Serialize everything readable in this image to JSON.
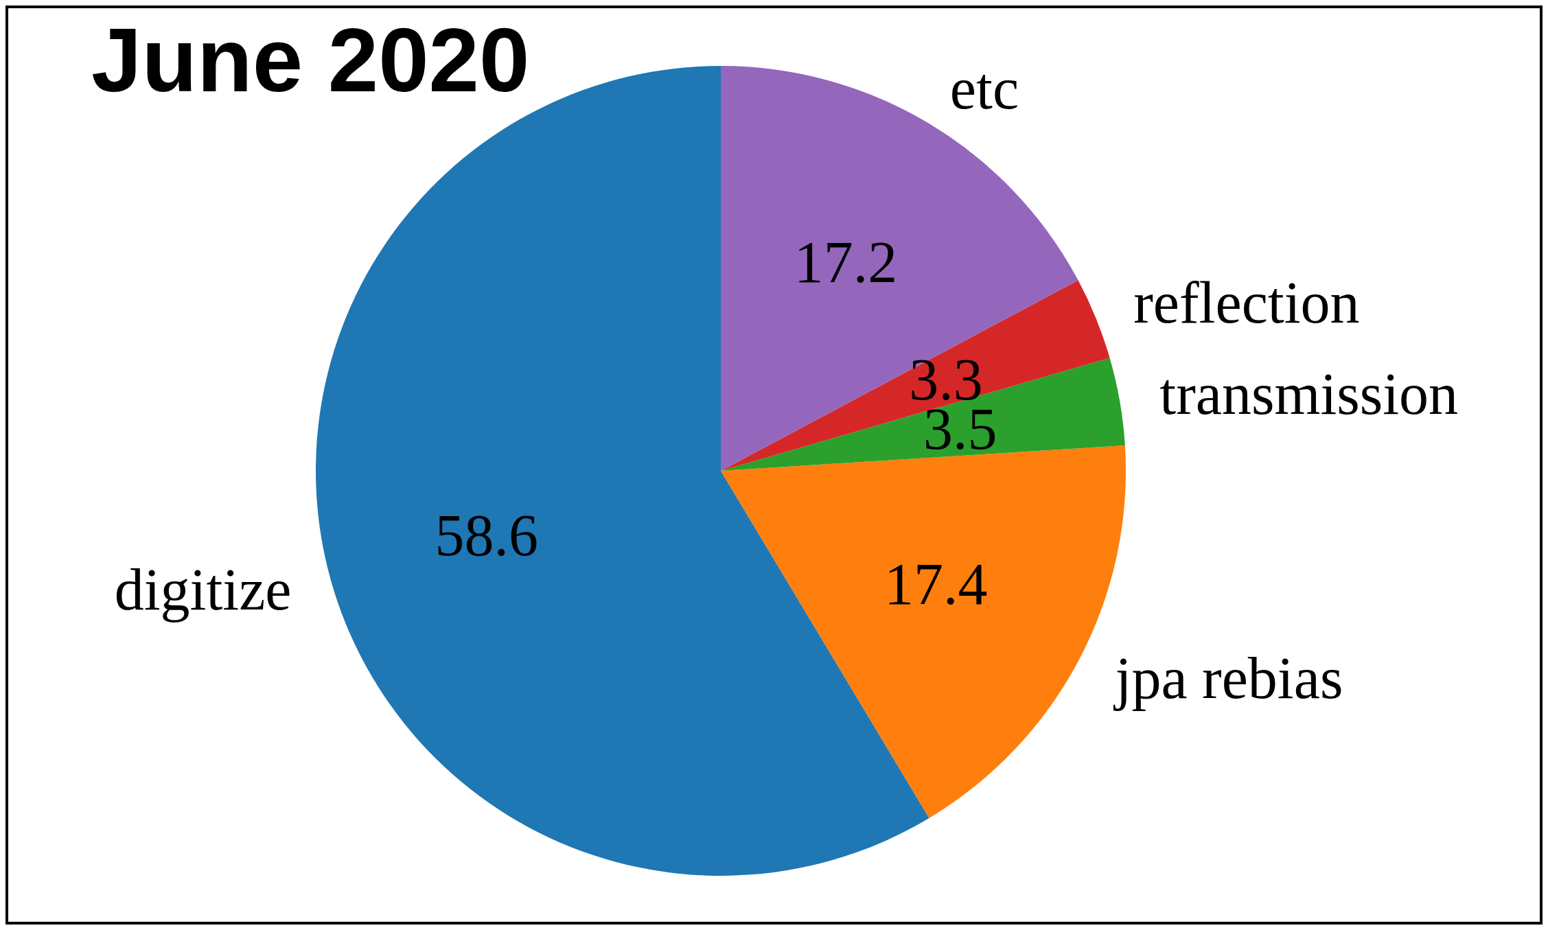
{
  "chart_data": {
    "type": "pie",
    "title": "June 2020",
    "categories": [
      "digitize",
      "jpa rebias",
      "transmission",
      "reflection",
      "etc"
    ],
    "values": [
      58.6,
      17.4,
      3.5,
      3.3,
      17.2
    ],
    "colors": [
      "#1f77b4",
      "#ff7f0e",
      "#2ca02c",
      "#d62728",
      "#9467bd"
    ],
    "data_labels": true
  }
}
